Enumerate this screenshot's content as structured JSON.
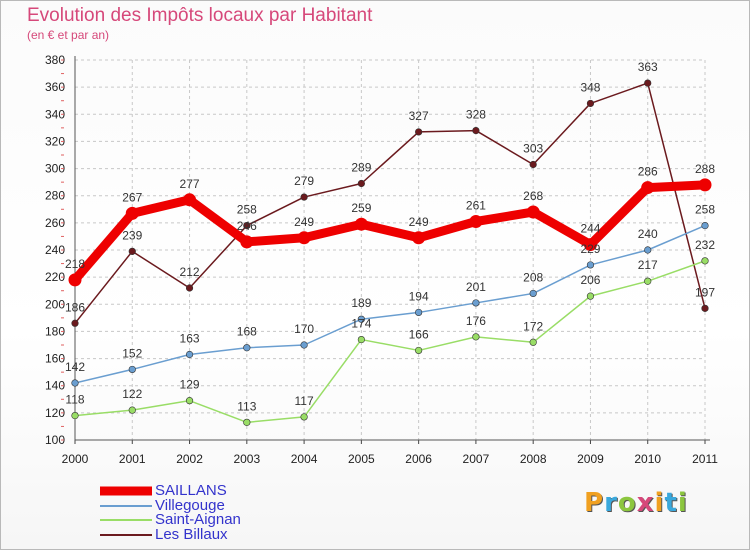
{
  "header": {
    "title": "Evolution des Impôts locaux par Habitant",
    "subtitle": "(en € et par an)"
  },
  "logo": {
    "letters": [
      "P",
      "r",
      "o",
      "x",
      "i",
      "t",
      "i"
    ],
    "colors": [
      "#f0a020",
      "#3aa8dc",
      "#8cc63f",
      "#d6487a",
      "#f0a020",
      "#3aa8dc",
      "#8cc63f"
    ]
  },
  "chart_data": {
    "type": "line",
    "title": "Evolution des Impôts locaux par Habitant",
    "subtitle": "(en € et par an)",
    "xlabel": "",
    "ylabel": "",
    "x": [
      "2000",
      "2001",
      "2002",
      "2003",
      "2004",
      "2005",
      "2006",
      "2007",
      "2008",
      "2009",
      "2010",
      "2011"
    ],
    "ylim": [
      100,
      380
    ],
    "yticks": [
      100,
      120,
      140,
      160,
      180,
      200,
      220,
      240,
      260,
      280,
      300,
      320,
      340,
      360,
      380
    ],
    "grid": true,
    "legend_position": "bottom-left",
    "series": [
      {
        "name": "Les Billaux",
        "color": "#6b1a1e",
        "style": "thin",
        "values": [
          186,
          239,
          212,
          258,
          279,
          289,
          327,
          328,
          303,
          348,
          363,
          197
        ],
        "labels": [
          "186",
          "239",
          "212",
          "258",
          "279",
          "289",
          "327",
          "328",
          "303",
          "348",
          "363",
          "197"
        ]
      },
      {
        "name": "Saint-Aignan",
        "color": "#99dd66",
        "style": "thin",
        "values": [
          118,
          122,
          129,
          113,
          117,
          174,
          166,
          176,
          172,
          206,
          217,
          232
        ],
        "labels": [
          "118",
          "122",
          "129",
          "113",
          "117",
          "174",
          "166",
          "176",
          "172",
          "206",
          "217",
          "232"
        ]
      },
      {
        "name": "Villegouge",
        "color": "#6a9ed0",
        "style": "thin",
        "values": [
          142,
          152,
          163,
          168,
          170,
          189,
          194,
          201,
          208,
          229,
          240,
          258
        ],
        "labels": [
          "142",
          "152",
          "163",
          "168",
          "170",
          "189",
          "194",
          "201",
          "208",
          "229",
          "240",
          "258"
        ]
      },
      {
        "name": "SAILLANS",
        "color": "#ee0000",
        "style": "thick",
        "values": [
          218,
          267,
          277,
          246,
          249,
          259,
          249,
          261,
          268,
          244,
          286,
          288
        ],
        "labels": [
          "218",
          "267",
          "277",
          "246",
          "249",
          "259",
          "249",
          "261",
          "268",
          "244",
          "286",
          "288"
        ]
      }
    ],
    "legend": [
      {
        "name": "SAILLANS",
        "color": "#ee0000",
        "style": "thick"
      },
      {
        "name": "Villegouge",
        "color": "#6a9ed0",
        "style": "thin"
      },
      {
        "name": "Saint-Aignan",
        "color": "#99dd66",
        "style": "thin"
      },
      {
        "name": "Les Billaux",
        "color": "#6b1a1e",
        "style": "thin"
      }
    ]
  }
}
